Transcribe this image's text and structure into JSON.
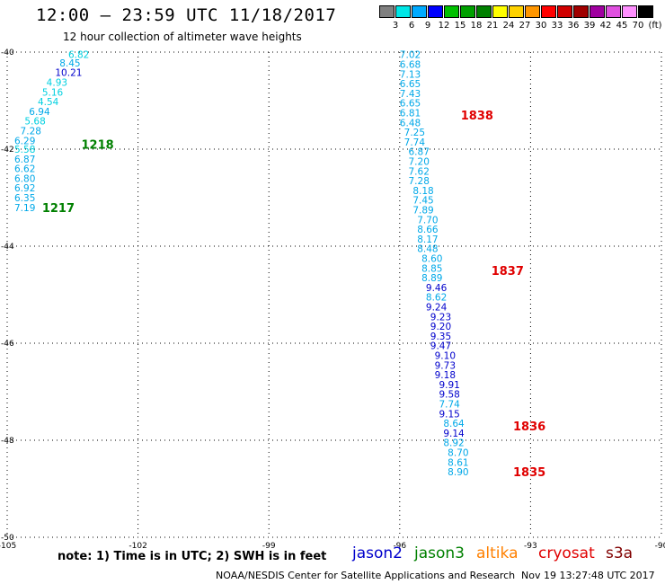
{
  "header": {
    "title": "12:00 – 23:59 UTC 11/18/2017",
    "subtitle": "12 hour collection of altimeter wave heights"
  },
  "colorbar": {
    "unit_label": "(ft)",
    "colors": [
      "#808080",
      "#00e6e6",
      "#00aaff",
      "#0000ff",
      "#00c000",
      "#00a000",
      "#008000",
      "#ffff00",
      "#ffd200",
      "#ff9600",
      "#ff0000",
      "#d00000",
      "#a00000",
      "#a000a0",
      "#e050e0",
      "#ff90ff",
      "#000000"
    ],
    "labels": [
      "3",
      "6",
      "9",
      "12",
      "15",
      "18",
      "21",
      "24",
      "27",
      "30",
      "33",
      "36",
      "39",
      "42",
      "45",
      "70"
    ]
  },
  "map": {
    "lon_range": [
      -105,
      -90
    ],
    "lat_range": [
      -50,
      -40
    ],
    "x_ticks": [
      "-105",
      "-102",
      "-99",
      "-96",
      "-93",
      "-90"
    ],
    "y_ticks": [
      "-40",
      "-42",
      "-44",
      "-46",
      "-48",
      "-50"
    ]
  },
  "tracks": [
    {
      "name": "track-1217-1218",
      "points": [
        {
          "lon": -103.6,
          "lat": -40.05,
          "swh": "6.82",
          "color": "#00d0e0"
        },
        {
          "lon": -103.8,
          "lat": -40.22,
          "swh": "8.45",
          "color": "#00a8e8"
        },
        {
          "lon": -103.9,
          "lat": -40.42,
          "swh": "10.21",
          "color": "#0000cc"
        },
        {
          "lon": -104.1,
          "lat": -40.62,
          "swh": "4.93",
          "color": "#00d0e0"
        },
        {
          "lon": -104.2,
          "lat": -40.82,
          "swh": "5.16",
          "color": "#00d0e0"
        },
        {
          "lon": -104.3,
          "lat": -41.02,
          "swh": "4.54",
          "color": "#00d0e0"
        },
        {
          "lon": -104.5,
          "lat": -41.22,
          "swh": "6.94",
          "color": "#00a8e8"
        },
        {
          "lon": -104.6,
          "lat": -41.42,
          "swh": "5.68",
          "color": "#00d0e0"
        },
        {
          "lon": -104.7,
          "lat": -41.62,
          "swh": "7.28",
          "color": "#00a8e8"
        },
        {
          "lon": -104.9,
          "lat": -41.82,
          "swh": "6.29",
          "color": "#00a8e8"
        },
        {
          "lon": -105.0,
          "lat": -42.0,
          "swh": "5.58",
          "color": "#00d0e0"
        },
        {
          "lon": -105.0,
          "lat": -42.2,
          "swh": "6.87",
          "color": "#00a8e8"
        },
        {
          "lon": -105.1,
          "lat": -42.4,
          "swh": "6.62",
          "color": "#00a8e8"
        },
        {
          "lon": -105.2,
          "lat": -42.6,
          "swh": "6.80",
          "color": "#00a8e8"
        },
        {
          "lon": -105.3,
          "lat": -42.8,
          "swh": "6.92",
          "color": "#00a8e8"
        },
        {
          "lon": -105.3,
          "lat": -43.0,
          "swh": "6.35",
          "color": "#00a8e8"
        },
        {
          "lon": -105.4,
          "lat": -43.2,
          "swh": "7.19",
          "color": "#00a8e8"
        }
      ]
    },
    {
      "name": "track-1835-1838",
      "points": [
        {
          "lon": -96.0,
          "lat": -40.05,
          "swh": "7.02",
          "color": "#00a8e8"
        },
        {
          "lon": -96.0,
          "lat": -40.25,
          "swh": "6.68",
          "color": "#00a8e8"
        },
        {
          "lon": -96.0,
          "lat": -40.45,
          "swh": "7.13",
          "color": "#00a8e8"
        },
        {
          "lon": -96.0,
          "lat": -40.65,
          "swh": "6.65",
          "color": "#00a8e8"
        },
        {
          "lon": -96.0,
          "lat": -40.85,
          "swh": "7.43",
          "color": "#00a8e8"
        },
        {
          "lon": -96.0,
          "lat": -41.05,
          "swh": "6.65",
          "color": "#00a8e8"
        },
        {
          "lon": -96.0,
          "lat": -41.25,
          "swh": "6.81",
          "color": "#00a8e8"
        },
        {
          "lon": -96.0,
          "lat": -41.45,
          "swh": "6.48",
          "color": "#00a8e8"
        },
        {
          "lon": -95.9,
          "lat": -41.65,
          "swh": "7.25",
          "color": "#00a8e8"
        },
        {
          "lon": -95.9,
          "lat": -41.85,
          "swh": "7.74",
          "color": "#00a8e8"
        },
        {
          "lon": -95.8,
          "lat": -42.05,
          "swh": "6.87",
          "color": "#00a8e8"
        },
        {
          "lon": -95.8,
          "lat": -42.25,
          "swh": "7.20",
          "color": "#00a8e8"
        },
        {
          "lon": -95.8,
          "lat": -42.45,
          "swh": "7.62",
          "color": "#00a8e8"
        },
        {
          "lon": -95.8,
          "lat": -42.65,
          "swh": "7.28",
          "color": "#00a8e8"
        },
        {
          "lon": -95.7,
          "lat": -42.85,
          "swh": "8.18",
          "color": "#00a8e8"
        },
        {
          "lon": -95.7,
          "lat": -43.05,
          "swh": "7.45",
          "color": "#00a8e8"
        },
        {
          "lon": -95.7,
          "lat": -43.25,
          "swh": "7.89",
          "color": "#00a8e8"
        },
        {
          "lon": -95.6,
          "lat": -43.45,
          "swh": "7.70",
          "color": "#00a8e8"
        },
        {
          "lon": -95.6,
          "lat": -43.65,
          "swh": "8.66",
          "color": "#00a8e8"
        },
        {
          "lon": -95.6,
          "lat": -43.85,
          "swh": "8.17",
          "color": "#00a8e8"
        },
        {
          "lon": -95.6,
          "lat": -44.05,
          "swh": "8.48",
          "color": "#00a8e8"
        },
        {
          "lon": -95.5,
          "lat": -44.25,
          "swh": "8.60",
          "color": "#00a8e8"
        },
        {
          "lon": -95.5,
          "lat": -44.45,
          "swh": "8.85",
          "color": "#00a8e8"
        },
        {
          "lon": -95.5,
          "lat": -44.65,
          "swh": "8.89",
          "color": "#00a8e8"
        },
        {
          "lon": -95.4,
          "lat": -44.85,
          "swh": "9.46",
          "color": "#0000cc"
        },
        {
          "lon": -95.4,
          "lat": -45.05,
          "swh": "8.62",
          "color": "#00a8e8"
        },
        {
          "lon": -95.4,
          "lat": -45.25,
          "swh": "9.24",
          "color": "#0000cc"
        },
        {
          "lon": -95.3,
          "lat": -45.45,
          "swh": "9.23",
          "color": "#0000cc"
        },
        {
          "lon": -95.3,
          "lat": -45.65,
          "swh": "9.20",
          "color": "#0000cc"
        },
        {
          "lon": -95.3,
          "lat": -45.85,
          "swh": "9.35",
          "color": "#0000cc"
        },
        {
          "lon": -95.3,
          "lat": -46.05,
          "swh": "9.47",
          "color": "#0000cc"
        },
        {
          "lon": -95.2,
          "lat": -46.25,
          "swh": "9.10",
          "color": "#0000cc"
        },
        {
          "lon": -95.2,
          "lat": -46.45,
          "swh": "9.73",
          "color": "#0000cc"
        },
        {
          "lon": -95.2,
          "lat": -46.65,
          "swh": "9.18",
          "color": "#0000cc"
        },
        {
          "lon": -95.1,
          "lat": -46.85,
          "swh": "9.91",
          "color": "#0000cc"
        },
        {
          "lon": -95.1,
          "lat": -47.05,
          "swh": "9.58",
          "color": "#0000cc"
        },
        {
          "lon": -95.1,
          "lat": -47.25,
          "swh": "7.74",
          "color": "#00a8e8"
        },
        {
          "lon": -95.1,
          "lat": -47.45,
          "swh": "9.15",
          "color": "#0000cc"
        },
        {
          "lon": -95.0,
          "lat": -47.65,
          "swh": "8.64",
          "color": "#00a8e8"
        },
        {
          "lon": -95.0,
          "lat": -47.85,
          "swh": "9.14",
          "color": "#0000cc"
        },
        {
          "lon": -95.0,
          "lat": -48.05,
          "swh": "8.92",
          "color": "#00a8e8"
        },
        {
          "lon": -94.9,
          "lat": -48.25,
          "swh": "8.70",
          "color": "#00a8e8"
        },
        {
          "lon": -94.9,
          "lat": -48.45,
          "swh": "8.61",
          "color": "#00a8e8"
        },
        {
          "lon": -94.9,
          "lat": -48.65,
          "swh": "8.90",
          "color": "#00a8e8"
        }
      ]
    }
  ],
  "time_labels": [
    {
      "lon": -103.3,
      "lat": -41.9,
      "text": "1218",
      "color": "#008000"
    },
    {
      "lon": -104.2,
      "lat": -43.2,
      "text": "1217",
      "color": "#008000"
    },
    {
      "lon": -94.6,
      "lat": -41.3,
      "text": "1838",
      "color": "#e00000"
    },
    {
      "lon": -93.9,
      "lat": -44.5,
      "text": "1837",
      "color": "#e00000"
    },
    {
      "lon": -93.4,
      "lat": -47.7,
      "text": "1836",
      "color": "#e00000"
    },
    {
      "lon": -93.4,
      "lat": -48.65,
      "text": "1835",
      "color": "#e00000"
    }
  ],
  "note": "note:  1) Time is in UTC;  2) SWH is in feet",
  "legend": [
    {
      "label": "jason2",
      "color": "#0000cc"
    },
    {
      "label": "jason3",
      "color": "#008000"
    },
    {
      "label": "altika",
      "color": "#ff8000"
    },
    {
      "label": "cryosat",
      "color": "#e00000"
    },
    {
      "label": "s3a",
      "color": "#800000"
    }
  ],
  "footer": {
    "credit": "NOAA/NESDIS Center for Satellite Applications and Research",
    "timestamp": "Nov 19 13:27:48 UTC 2017"
  }
}
